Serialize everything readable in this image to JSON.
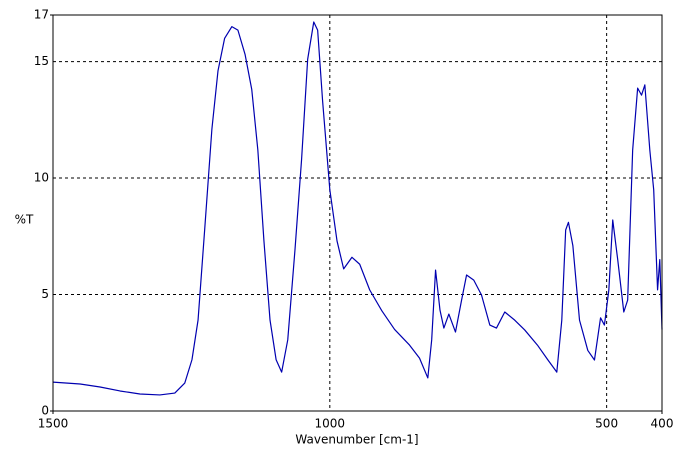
{
  "chart_data": {
    "type": "line",
    "xlabel": "Wavenumber [cm-1]",
    "ylabel": "%T",
    "xlim": [
      1500,
      400
    ],
    "ylim": [
      0,
      17
    ],
    "xticks": [
      1500,
      1000,
      500,
      400
    ],
    "yticks": [
      0,
      5,
      10,
      15,
      17
    ],
    "grid": true,
    "x": [
      1500,
      1451,
      1415,
      1379,
      1343,
      1307,
      1280,
      1262,
      1249,
      1238,
      1226,
      1213,
      1202,
      1190,
      1177,
      1166,
      1153,
      1141,
      1130,
      1119,
      1108,
      1097,
      1087,
      1076,
      1063,
      1051,
      1040,
      1029,
      1022,
      1013,
      1000,
      987,
      975,
      960,
      946,
      928,
      906,
      883,
      856,
      838,
      823,
      816,
      809,
      801,
      794,
      785,
      773,
      762,
      753,
      740,
      726,
      711,
      699,
      684,
      666,
      648,
      625,
      606,
      590,
      581,
      574,
      569,
      561,
      549,
      534,
      522,
      511,
      504,
      496,
      489,
      480,
      469,
      462,
      453,
      444,
      437,
      431,
      422,
      415,
      408,
      404,
      400
    ],
    "series": [
      {
        "color": "#0000b0",
        "values": [
          1.24,
          1.16,
          1.03,
          0.86,
          0.73,
          0.69,
          0.77,
          1.2,
          2.2,
          3.9,
          7.8,
          12.1,
          14.6,
          16.0,
          16.5,
          16.35,
          15.3,
          13.8,
          11.2,
          7.3,
          3.9,
          2.2,
          1.67,
          3.05,
          6.9,
          10.8,
          15.1,
          16.7,
          16.35,
          13.3,
          9.5,
          7.3,
          6.1,
          6.6,
          6.3,
          5.2,
          4.3,
          3.5,
          2.83,
          2.27,
          1.42,
          3.05,
          6.05,
          4.33,
          3.56,
          4.16,
          3.39,
          4.76,
          5.84,
          5.62,
          4.98,
          3.69,
          3.56,
          4.25,
          3.9,
          3.48,
          2.83,
          2.19,
          1.67,
          3.9,
          7.77,
          8.1,
          7.1,
          3.9,
          2.6,
          2.19,
          4.0,
          3.69,
          5.2,
          8.2,
          6.5,
          4.25,
          4.76,
          11.2,
          13.86,
          13.56,
          14.0,
          11.2,
          9.5,
          5.2,
          6.5,
          3.5
        ]
      }
    ]
  }
}
